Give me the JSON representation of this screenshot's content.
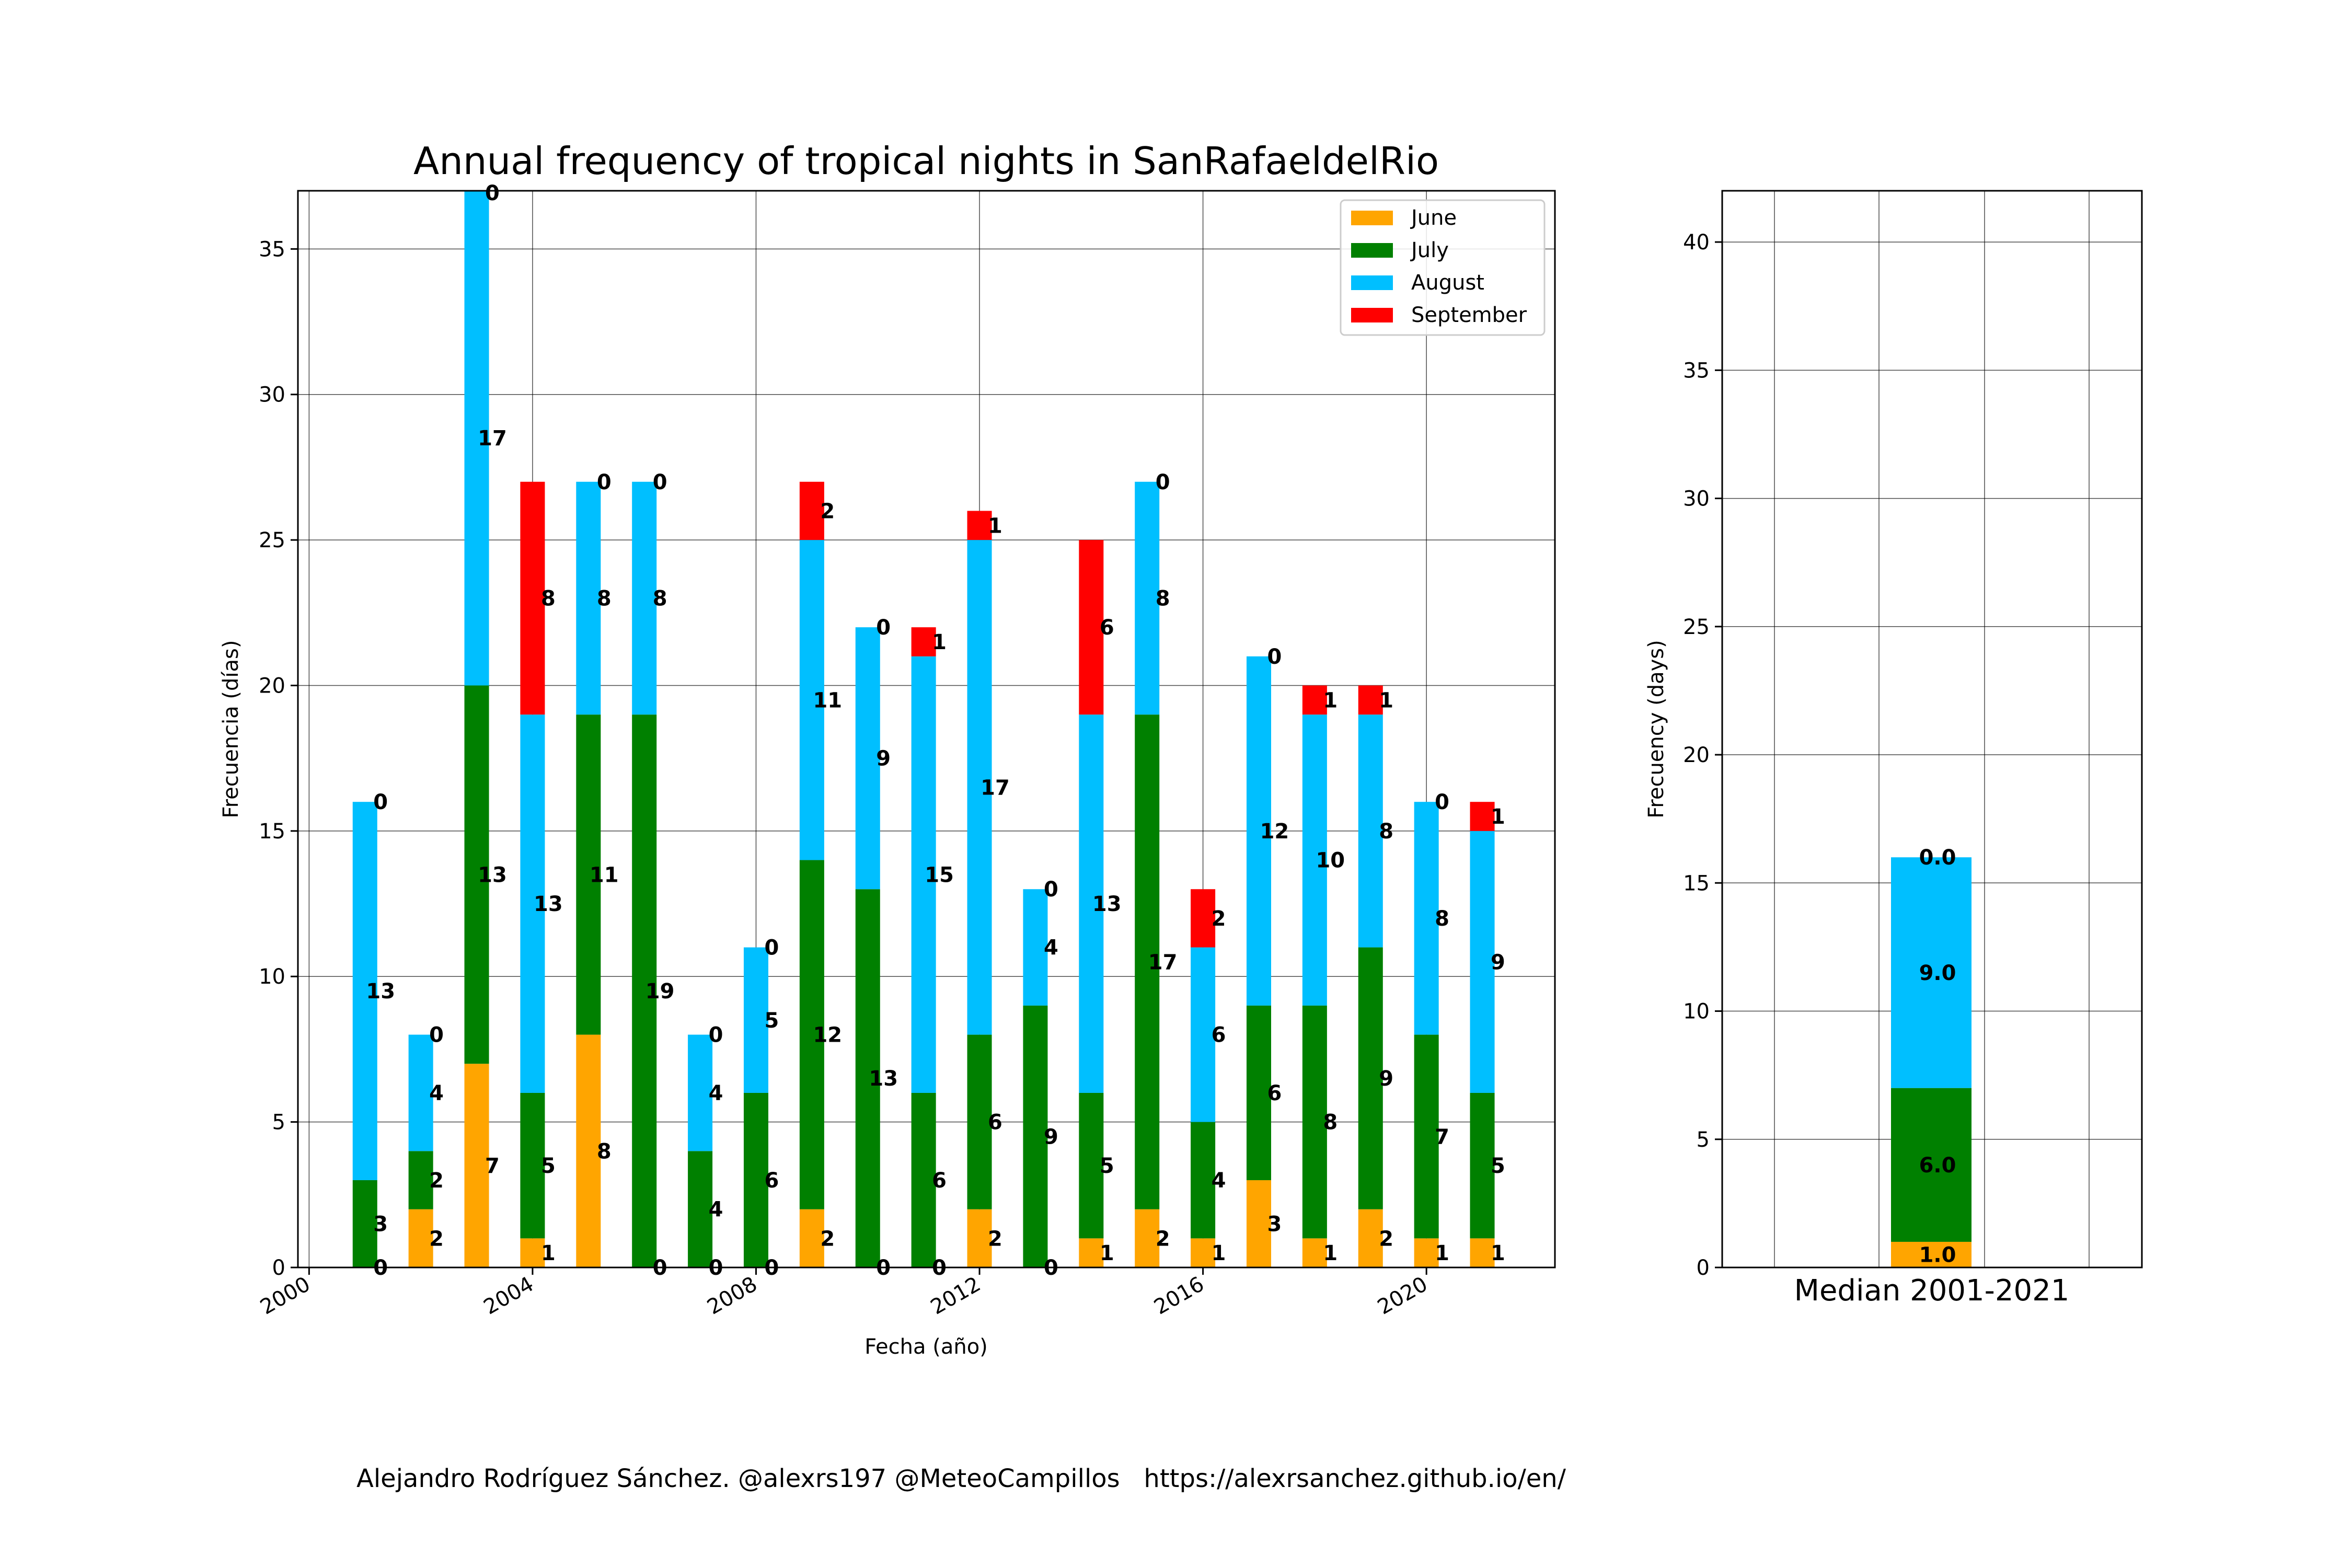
{
  "footer": "Alejandro Rodríguez Sánchez. @alexrs197 @MeteoCampillos   https://alexrsanchez.github.io/en/",
  "colors": {
    "June": "#FFA500",
    "July": "#008000",
    "August": "#00BFFF",
    "September": "#FF0000",
    "grid": "#000000",
    "label": "#000000"
  },
  "chart_data": [
    {
      "type": "bar",
      "stacked": true,
      "title": "Annual frequency of tropical nights in SanRafaeldelRio",
      "xlabel": "Fecha (año)",
      "ylabel": "Frecuencia (días)",
      "xlim": [
        1999.8,
        2022.3
      ],
      "ylim": [
        0,
        37
      ],
      "xticks": [
        "2000",
        "2004",
        "2008",
        "2012",
        "2016",
        "2020"
      ],
      "yticks": [
        "0",
        "5",
        "10",
        "15",
        "20",
        "25",
        "30",
        "35"
      ],
      "grid": true,
      "legend_position": "top-right",
      "categories": [
        "2001",
        "2002",
        "2003",
        "2004",
        "2005",
        "2006",
        "2007",
        "2008",
        "2009",
        "2010",
        "2011",
        "2012",
        "2013",
        "2014",
        "2015",
        "2016",
        "2017",
        "2018",
        "2019",
        "2020",
        "2021"
      ],
      "series": [
        {
          "name": "June",
          "values": [
            0,
            2,
            7,
            1,
            8,
            0,
            0,
            0,
            2,
            0,
            0,
            2,
            0,
            1,
            2,
            1,
            3,
            1,
            2,
            1,
            1
          ]
        },
        {
          "name": "July",
          "values": [
            3,
            2,
            13,
            5,
            11,
            19,
            4,
            6,
            12,
            13,
            6,
            6,
            9,
            5,
            17,
            4,
            6,
            8,
            9,
            7,
            5
          ]
        },
        {
          "name": "August",
          "values": [
            13,
            4,
            17,
            13,
            8,
            8,
            4,
            5,
            11,
            9,
            15,
            17,
            4,
            13,
            8,
            6,
            12,
            10,
            8,
            8,
            9
          ]
        },
        {
          "name": "September",
          "values": [
            0,
            0,
            0,
            8,
            0,
            0,
            0,
            0,
            2,
            0,
            1,
            1,
            0,
            6,
            0,
            2,
            0,
            1,
            1,
            0,
            1
          ]
        }
      ]
    },
    {
      "type": "bar",
      "stacked": true,
      "title": "",
      "xlabel": "Median 2001-2021",
      "ylabel": "Frecuency (days)",
      "ylim": [
        0,
        42
      ],
      "yticks": [
        "0",
        "5",
        "10",
        "15",
        "20",
        "25",
        "30",
        "35",
        "40"
      ],
      "grid": true,
      "series": [
        {
          "name": "June",
          "value": 1.0,
          "label": "1.0"
        },
        {
          "name": "July",
          "value": 6.0,
          "label": "6.0"
        },
        {
          "name": "August",
          "value": 9.0,
          "label": "9.0"
        },
        {
          "name": "September",
          "value": 0.0,
          "label": "0.0"
        }
      ]
    }
  ]
}
